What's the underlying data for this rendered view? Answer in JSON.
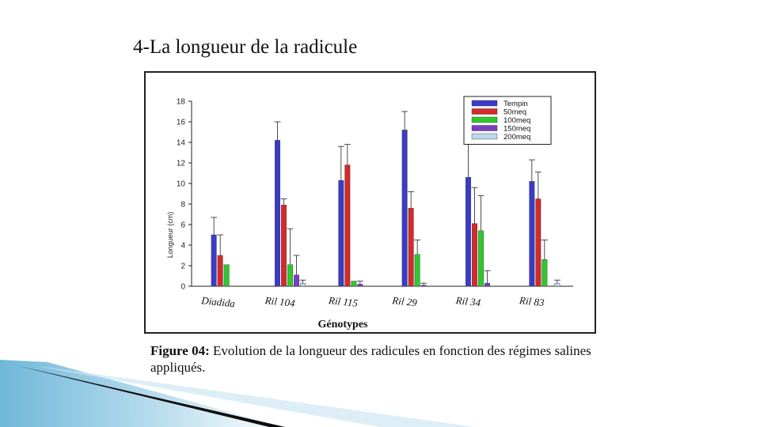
{
  "slide": {
    "title": "4-La longueur de la radicule",
    "caption_bold": "Figure 04:",
    "caption_text": " Evolution de la longueur des radicules en fonction des régimes salines appliqués."
  },
  "chart_data": {
    "type": "bar",
    "categories": [
      "Diadida",
      "Ril 104",
      "Ril 115",
      "Ril 29",
      "Ril 34",
      "Ril 83"
    ],
    "xlabel": "Génotypes",
    "ylabel": "Longueur (cm)",
    "ylim": [
      0,
      18
    ],
    "yticks": [
      0,
      2,
      4,
      6,
      8,
      10,
      12,
      14,
      16,
      18
    ],
    "grid": false,
    "legend_position": "top-right",
    "series": [
      {
        "name": "Tempin",
        "color": "#3b3bc8",
        "values": [
          5.0,
          14.2,
          10.3,
          15.2,
          10.6,
          10.2
        ],
        "errors": [
          1.7,
          1.8,
          3.3,
          1.8,
          3.6,
          2.1
        ]
      },
      {
        "name": "50meq",
        "color": "#d42a2a",
        "values": [
          3.0,
          7.9,
          11.8,
          7.6,
          6.1,
          8.5
        ],
        "errors": [
          2.0,
          0.6,
          2.0,
          1.6,
          3.5,
          2.6
        ]
      },
      {
        "name": "100meq",
        "color": "#2ec82e",
        "values": [
          2.1,
          2.1,
          0.5,
          3.1,
          5.4,
          2.6
        ],
        "errors": [
          0,
          3.5,
          0,
          1.4,
          3.4,
          1.9
        ]
      },
      {
        "name": "150meq",
        "color": "#7a3fc0",
        "values": [
          0,
          1.1,
          0.2,
          0.1,
          0.3,
          0
        ],
        "errors": [
          0,
          1.9,
          0.3,
          0.2,
          1.2,
          0
        ]
      },
      {
        "name": "200meq",
        "color": "#bcd8ec",
        "values": [
          0,
          0.3,
          0,
          0,
          0,
          0.3
        ],
        "errors": [
          0,
          0.3,
          0,
          0,
          0,
          0.3
        ]
      }
    ]
  }
}
